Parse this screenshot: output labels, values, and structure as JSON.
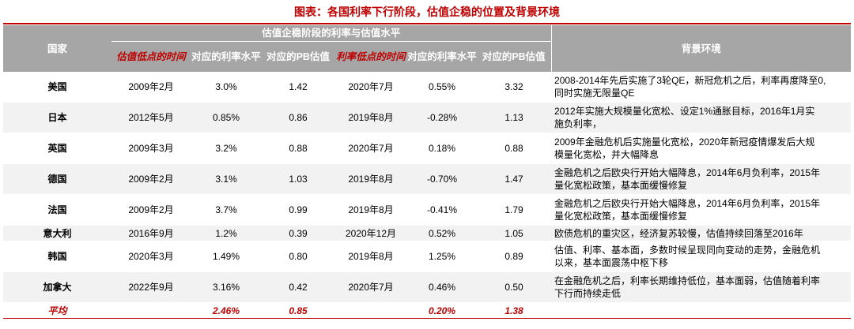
{
  "title": "图表：各国利率下行阶段，估值企稳的位置及背景环境",
  "header": {
    "country": "国家",
    "group": "估值企稳阶段的利率与估值水平",
    "low_val_time": "估值低点的时间",
    "rate_1": "对应的利率水平",
    "pb_1": "对应的PB估值",
    "low_rate_time": "利率低点的时间",
    "rate_2": "对应的利率水平",
    "pb_2": "对应的PB估值",
    "background": "背景环境"
  },
  "rows": [
    {
      "country": "美国",
      "t1": "2009年2月",
      "r1": "3.0%",
      "pb1": "1.42",
      "t2": "2020年7月",
      "r2": "0.55%",
      "pb2": "3.32",
      "bg_lines": [
        "2008-2014年先后实施了3轮QE，新冠危机之后，利率再度降至0,",
        "同时实施无限量QE"
      ]
    },
    {
      "country": "日本",
      "t1": "2012年5月",
      "r1": "0.85%",
      "pb1": "0.86",
      "t2": "2019年8月",
      "r2": "-0.28%",
      "pb2": "1.13",
      "bg_lines": [
        "2012年实施大规模量化宽松、设定1%通胀目标，2016年1月实",
        "施负利率，"
      ]
    },
    {
      "country": "英国",
      "t1": "2009年3月",
      "r1": "3.2%",
      "pb1": "0.88",
      "t2": "2020年7月",
      "r2": "0.18%",
      "pb2": "0.88",
      "bg_lines": [
        "2009年金融危机后实施量化宽松，2020年新冠疫情爆发后大规",
        "模量化宽松，并大幅降息"
      ]
    },
    {
      "country": "德国",
      "t1": "2009年2月",
      "r1": "3.1%",
      "pb1": "1.03",
      "t2": "2019年8月",
      "r2": "-0.70%",
      "pb2": "1.47",
      "bg_lines": [
        "金融危机之后欧央行开始大幅降息，2014年6月负利率，2015年",
        "量化宽松政策，基本面缓慢修复"
      ]
    },
    {
      "country": "法国",
      "t1": "2009年2月",
      "r1": "3.7%",
      "pb1": "0.99",
      "t2": "2019年8月",
      "r2": "-0.41%",
      "pb2": "1.79",
      "bg_lines": [
        "金融危机之后欧央行开始大幅降息，2014年6月负利率，2015年",
        "量化宽松政策，基本面缓慢修复"
      ]
    },
    {
      "country": "意大利",
      "t1": "2016年9月",
      "r1": "1.2%",
      "pb1": "0.39",
      "t2": "2020年12月",
      "r2": "0.52%",
      "pb2": "1.05",
      "bg_lines": [
        "欧债危机的重灾区，经济复苏较慢，估值持续回落至2016年"
      ]
    },
    {
      "country": "韩国",
      "t1": "2020年3月",
      "r1": "1.49%",
      "pb1": "0.80",
      "t2": "2019年8月",
      "r2": "1.25%",
      "pb2": "0.89",
      "bg_lines": [
        "估值、利率、基本面，多数时候呈现同向变动的走势，金融危机",
        "以来，基本面震荡中枢下移"
      ]
    },
    {
      "country": "加拿大",
      "t1": "2022年9月",
      "r1": "3.16%",
      "pb1": "0.42",
      "t2": "2020年7月",
      "r2": "0.46%",
      "pb2": "0.50",
      "bg_lines": [
        "在金融危机之后，利率长期维持低位，基本面弱，估值随着利率",
        "下行而持续走低"
      ]
    }
  ],
  "average": {
    "label": "平均",
    "r1": "2.46%",
    "pb1": "0.85",
    "r2": "0.20%",
    "pb2": "1.38"
  }
}
